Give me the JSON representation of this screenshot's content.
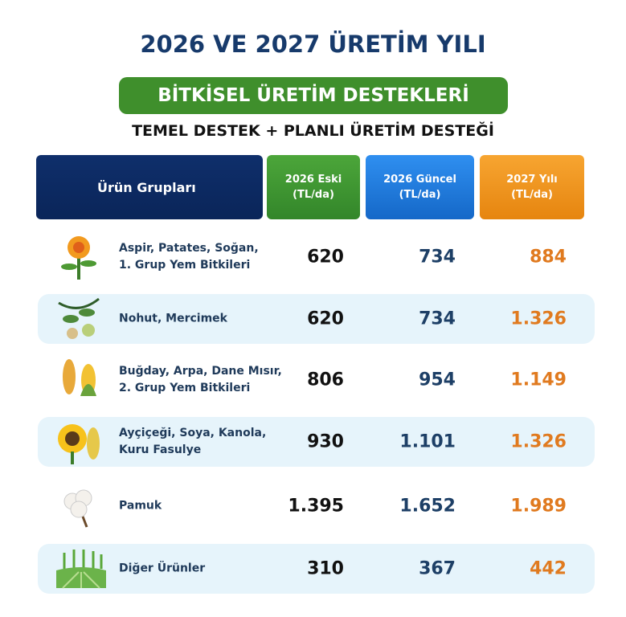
{
  "header": {
    "title": "2026 VE 2027 ÜRETİM YILI",
    "badge": "BİTKİSEL ÜRETİM DESTEKLERİ",
    "subtitle": "TEMEL DESTEK + PLANLI ÜRETİM DESTEĞİ"
  },
  "table": {
    "columns": [
      [
        "Ürün Grupları"
      ],
      [
        "2026 Eski",
        "(TL/da)"
      ],
      [
        "2026 Güncel",
        "(TL/da)"
      ],
      [
        "2027 Yılı",
        "(TL/da)"
      ]
    ],
    "rows": [
      {
        "label": [
          "Aspir, Patates, Soğan,",
          "1. Grup Yem Bitkileri"
        ],
        "values": [
          "620",
          "734",
          "884"
        ]
      },
      {
        "label": [
          "Nohut, Mercimek"
        ],
        "values": [
          "620",
          "734",
          "1.326"
        ]
      },
      {
        "label": [
          "Buğday, Arpa, Dane Mısır,",
          "2. Grup Yem Bitkileri"
        ],
        "values": [
          "806",
          "954",
          "1.149"
        ]
      },
      {
        "label": [
          "Ayçiçeği, Soya, Kanola,",
          "Kuru Fasulye"
        ],
        "values": [
          "930",
          "1.101",
          "1.326"
        ]
      },
      {
        "label": [
          "Pamuk"
        ],
        "values": [
          "1.395",
          "1.652",
          "1.989"
        ]
      },
      {
        "label": [
          "Diğer Ürünler"
        ],
        "values": [
          "310",
          "367",
          "442"
        ]
      }
    ]
  }
}
